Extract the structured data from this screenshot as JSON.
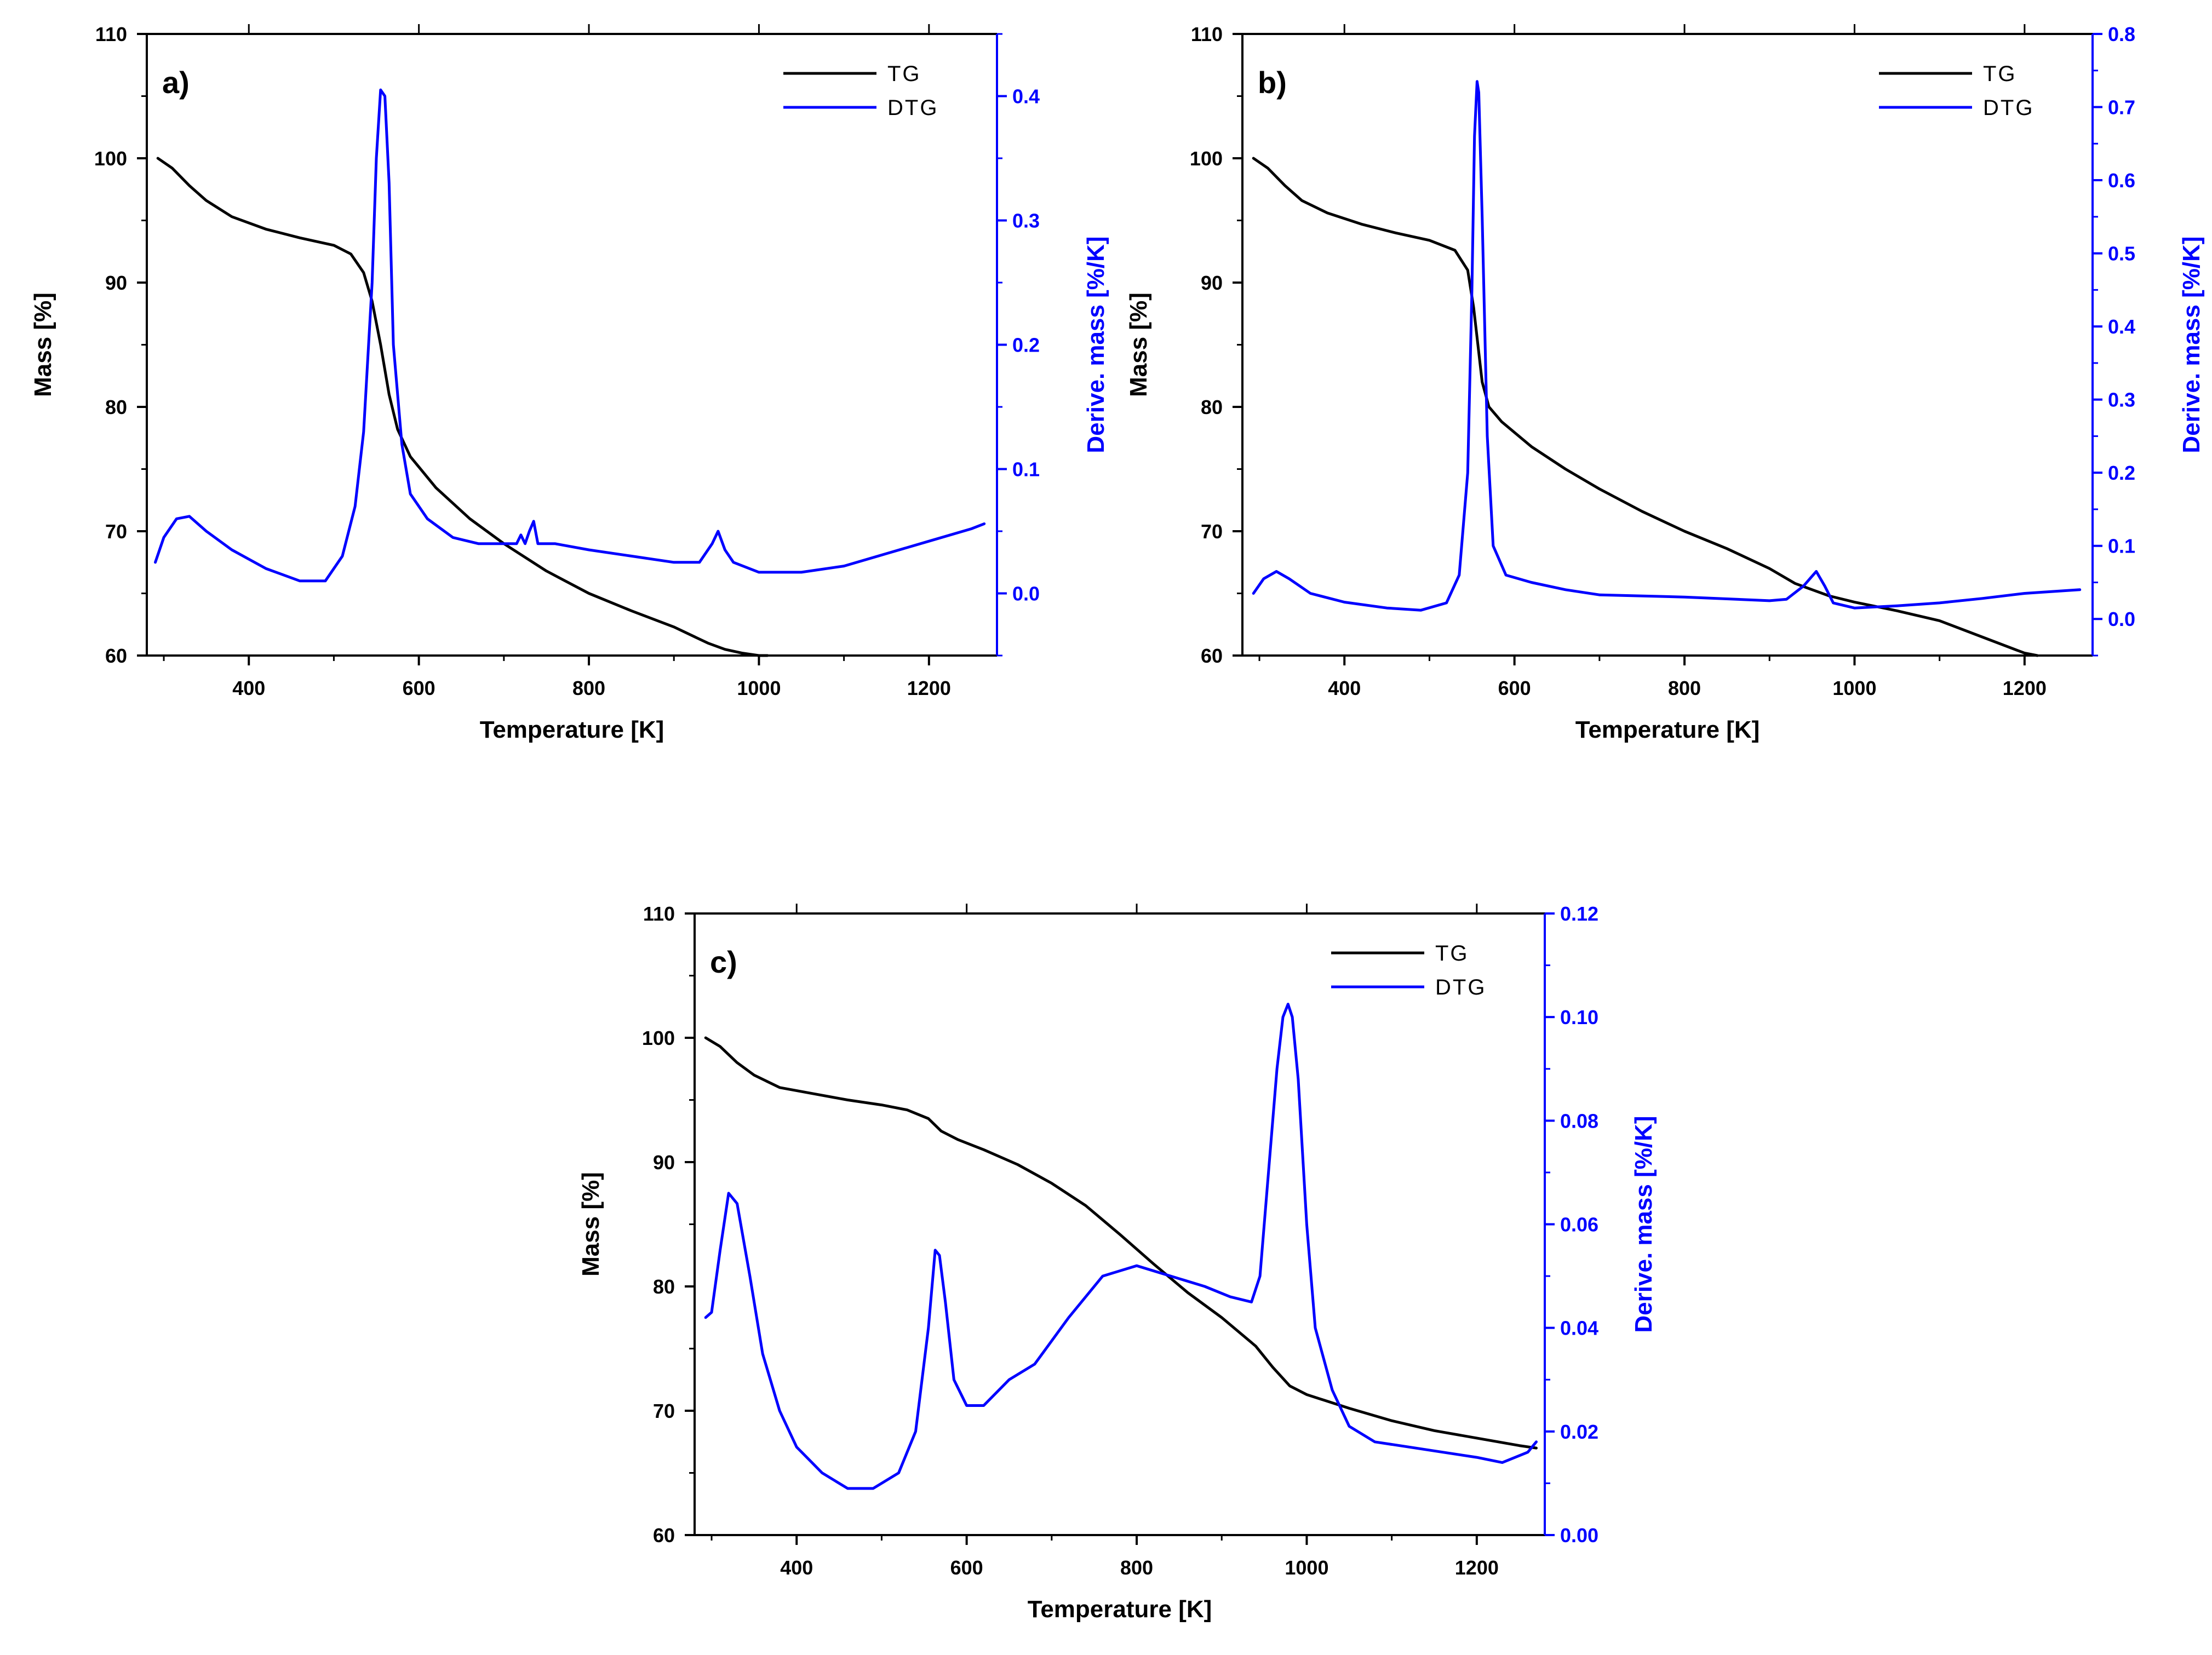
{
  "figure": {
    "x_axis_label": "Temperature [K]",
    "left_axis_label": "Mass [%]",
    "right_axis_label": "Derive. mass [%/K]",
    "right_axis_color": "#0000ff",
    "tg_color": "#000000",
    "dtg_color": "#0000ff"
  },
  "chart_data": [
    {
      "type": "line",
      "panel": "a)",
      "xlim": [
        280,
        1280
      ],
      "xticks": [
        400,
        600,
        800,
        1000,
        1200
      ],
      "ylim_left": [
        60,
        110
      ],
      "yticks_left": [
        60,
        70,
        80,
        90,
        100,
        110
      ],
      "ylim_right": [
        -0.05,
        0.45
      ],
      "yticks_right": [
        0.0,
        0.1,
        0.2,
        0.3,
        0.4
      ],
      "ytick_right_labels": [
        "0.0",
        "0.1",
        "0.2",
        "0.3",
        "0.4"
      ],
      "legend": [
        "TG",
        "DTG"
      ],
      "series": [
        {
          "name": "TG",
          "axis": "left",
          "x": [
            293,
            310,
            330,
            350,
            380,
            420,
            460,
            500,
            520,
            535,
            545,
            555,
            565,
            575,
            590,
            620,
            660,
            700,
            750,
            800,
            850,
            900,
            940,
            960,
            980,
            1000,
            1010
          ],
          "y": [
            100,
            99.2,
            97.8,
            96.6,
            95.3,
            94.3,
            93.6,
            93.0,
            92.3,
            90.8,
            88.5,
            85.0,
            81.0,
            78.2,
            76.0,
            73.5,
            71.0,
            69.0,
            66.8,
            65.0,
            63.6,
            62.3,
            61.0,
            60.5,
            60.2,
            60.0,
            60.0
          ]
        },
        {
          "name": "DTG",
          "axis": "right",
          "x": [
            290,
            300,
            315,
            330,
            350,
            380,
            420,
            460,
            490,
            510,
            525,
            535,
            545,
            550,
            555,
            560,
            565,
            570,
            580,
            590,
            610,
            640,
            670,
            700,
            715,
            720,
            725,
            730,
            735,
            740,
            760,
            800,
            850,
            900,
            930,
            945,
            952,
            960,
            970,
            1000,
            1050,
            1100,
            1150,
            1200,
            1250,
            1265
          ],
          "y": [
            0.025,
            0.045,
            0.06,
            0.062,
            0.05,
            0.035,
            0.02,
            0.01,
            0.01,
            0.03,
            0.07,
            0.13,
            0.25,
            0.35,
            0.405,
            0.4,
            0.33,
            0.2,
            0.12,
            0.08,
            0.06,
            0.045,
            0.04,
            0.04,
            0.04,
            0.047,
            0.04,
            0.05,
            0.058,
            0.04,
            0.04,
            0.035,
            0.03,
            0.025,
            0.025,
            0.04,
            0.05,
            0.035,
            0.025,
            0.017,
            0.017,
            0.022,
            0.032,
            0.042,
            0.052,
            0.056
          ]
        }
      ]
    },
    {
      "type": "line",
      "panel": "b)",
      "xlim": [
        280,
        1280
      ],
      "xticks": [
        400,
        600,
        800,
        1000,
        1200
      ],
      "ylim_left": [
        60,
        110
      ],
      "yticks_left": [
        60,
        70,
        80,
        90,
        100,
        110
      ],
      "ylim_right": [
        -0.05,
        0.8
      ],
      "yticks_right": [
        0.0,
        0.1,
        0.2,
        0.3,
        0.4,
        0.5,
        0.6,
        0.7,
        0.8
      ],
      "ytick_right_labels": [
        "0.0",
        "0.1",
        "0.2",
        "0.3",
        "0.4",
        "0.5",
        "0.6",
        "0.7",
        "0.8"
      ],
      "legend": [
        "TG",
        "DTG"
      ],
      "series": [
        {
          "name": "TG",
          "axis": "left",
          "x": [
            293,
            310,
            330,
            350,
            380,
            420,
            460,
            500,
            530,
            545,
            552,
            557,
            562,
            570,
            585,
            620,
            660,
            700,
            750,
            800,
            850,
            900,
            930,
            950,
            970,
            1000,
            1050,
            1100,
            1150,
            1200,
            1215
          ],
          "y": [
            100,
            99.2,
            97.8,
            96.6,
            95.6,
            94.7,
            94.0,
            93.4,
            92.6,
            91.0,
            88.0,
            85.0,
            82.0,
            80.0,
            78.8,
            76.8,
            75.0,
            73.4,
            71.6,
            70.0,
            68.6,
            67.0,
            65.8,
            65.3,
            64.8,
            64.3,
            63.6,
            62.8,
            61.5,
            60.2,
            60.0
          ]
        },
        {
          "name": "DTG",
          "axis": "right",
          "x": [
            293,
            305,
            320,
            335,
            360,
            400,
            450,
            490,
            520,
            535,
            545,
            550,
            553,
            556,
            558,
            562,
            568,
            575,
            590,
            620,
            660,
            700,
            800,
            900,
            920,
            940,
            955,
            965,
            975,
            1000,
            1050,
            1100,
            1150,
            1200,
            1265
          ],
          "y": [
            0.035,
            0.055,
            0.065,
            0.055,
            0.035,
            0.023,
            0.015,
            0.012,
            0.022,
            0.06,
            0.2,
            0.45,
            0.66,
            0.735,
            0.72,
            0.55,
            0.25,
            0.1,
            0.06,
            0.05,
            0.04,
            0.033,
            0.03,
            0.025,
            0.027,
            0.045,
            0.065,
            0.045,
            0.022,
            0.015,
            0.018,
            0.022,
            0.028,
            0.035,
            0.04
          ]
        }
      ]
    },
    {
      "type": "line",
      "panel": "c)",
      "xlim": [
        280,
        1280
      ],
      "xticks": [
        400,
        600,
        800,
        1000,
        1200
      ],
      "ylim_left": [
        60,
        110
      ],
      "yticks_left": [
        60,
        70,
        80,
        90,
        100,
        110
      ],
      "ylim_right": [
        0.0,
        0.12
      ],
      "yticks_right": [
        0.0,
        0.02,
        0.04,
        0.06,
        0.08,
        0.1,
        0.12
      ],
      "ytick_right_labels": [
        "0.00",
        "0.02",
        "0.04",
        "0.06",
        "0.08",
        "0.10",
        "0.12"
      ],
      "legend": [
        "TG",
        "DTG"
      ],
      "series": [
        {
          "name": "TG",
          "axis": "left",
          "x": [
            293,
            310,
            330,
            350,
            380,
            420,
            460,
            500,
            530,
            555,
            570,
            590,
            620,
            660,
            700,
            740,
            780,
            820,
            860,
            900,
            940,
            960,
            980,
            1000,
            1050,
            1100,
            1150,
            1200,
            1250,
            1270
          ],
          "y": [
            100,
            99.3,
            98.0,
            97.0,
            96.0,
            95.5,
            95.0,
            94.6,
            94.2,
            93.5,
            92.5,
            91.8,
            91.0,
            89.8,
            88.3,
            86.5,
            84.2,
            81.8,
            79.5,
            77.5,
            75.2,
            73.5,
            72.0,
            71.3,
            70.2,
            69.2,
            68.4,
            67.8,
            67.2,
            67.0
          ]
        },
        {
          "name": "DTG",
          "axis": "right",
          "x": [
            293,
            300,
            310,
            320,
            330,
            345,
            360,
            380,
            400,
            430,
            460,
            490,
            520,
            540,
            555,
            563,
            568,
            575,
            585,
            600,
            620,
            650,
            680,
            720,
            760,
            800,
            840,
            880,
            910,
            935,
            945,
            955,
            965,
            972,
            978,
            983,
            990,
            1000,
            1010,
            1030,
            1050,
            1080,
            1120,
            1160,
            1200,
            1230,
            1260,
            1270
          ],
          "y": [
            0.042,
            0.043,
            0.055,
            0.066,
            0.064,
            0.05,
            0.035,
            0.024,
            0.017,
            0.012,
            0.009,
            0.009,
            0.012,
            0.02,
            0.04,
            0.055,
            0.054,
            0.045,
            0.03,
            0.025,
            0.025,
            0.03,
            0.033,
            0.042,
            0.05,
            0.052,
            0.05,
            0.048,
            0.046,
            0.045,
            0.05,
            0.07,
            0.09,
            0.1,
            0.1025,
            0.1,
            0.088,
            0.06,
            0.04,
            0.028,
            0.021,
            0.018,
            0.017,
            0.016,
            0.015,
            0.014,
            0.016,
            0.018
          ]
        }
      ]
    }
  ]
}
